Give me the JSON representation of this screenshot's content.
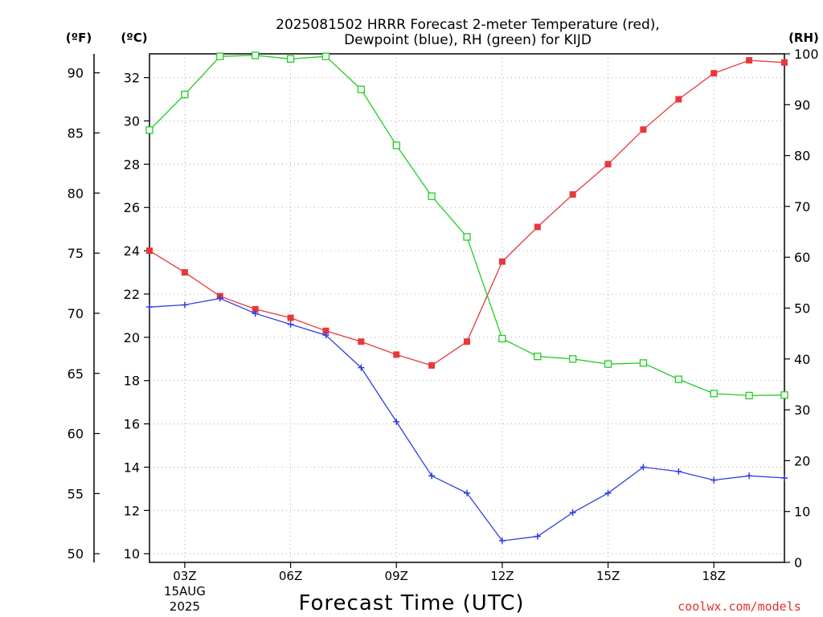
{
  "chart_data": {
    "type": "line",
    "title_line1": "2025081502 HRRR Forecast 2-meter Temperature (red),",
    "title_line2": "Dewpoint (blue), RH (green) for KIJD",
    "xlabel": "Forecast Time (UTC)",
    "credit": "coolwx.com/models",
    "left_outer_unit": "(ºF)",
    "left_inner_unit": "(ºC)",
    "right_unit": "(RH)",
    "x_hours": [
      2,
      3,
      4,
      5,
      6,
      7,
      8,
      9,
      10,
      11,
      12,
      13,
      14,
      15,
      16,
      17,
      18,
      19,
      20
    ],
    "xlim": [
      2,
      20
    ],
    "x_ticks": [
      {
        "hour": 3,
        "label": "03Z",
        "sub1": "15AUG",
        "sub2": "2025"
      },
      {
        "hour": 6,
        "label": "06Z"
      },
      {
        "hour": 9,
        "label": "09Z"
      },
      {
        "hour": 12,
        "label": "12Z"
      },
      {
        "hour": 15,
        "label": "15Z"
      },
      {
        "hour": 18,
        "label": "18Z"
      }
    ],
    "ylim_c": [
      9.6,
      33.1
    ],
    "ylim_rh": [
      0,
      100
    ],
    "c_ticks": [
      10,
      12,
      14,
      16,
      18,
      20,
      22,
      24,
      26,
      28,
      30,
      32
    ],
    "f_ticks": [
      50,
      55,
      60,
      65,
      70,
      75,
      80,
      85,
      90
    ],
    "rh_ticks": [
      0,
      10,
      20,
      30,
      40,
      50,
      60,
      70,
      80,
      90,
      100
    ],
    "grid": true,
    "series": [
      {
        "name": "Temperature",
        "unit": "C",
        "color": "#e8383c",
        "marker": "filled-square",
        "values": [
          24.0,
          23.0,
          21.9,
          21.3,
          20.9,
          20.3,
          19.8,
          19.2,
          18.7,
          19.8,
          23.5,
          25.1,
          26.6,
          28.0,
          29.6,
          31.0,
          32.2,
          32.8,
          32.7
        ]
      },
      {
        "name": "Dewpoint",
        "unit": "C",
        "color": "#2e3fe0",
        "marker": "plus",
        "values": [
          21.4,
          21.5,
          21.8,
          21.1,
          20.6,
          20.1,
          18.6,
          16.1,
          13.6,
          12.8,
          10.6,
          10.8,
          11.9,
          12.8,
          14.0,
          13.8,
          13.4,
          13.6,
          13.5
        ]
      },
      {
        "name": "RH",
        "unit": "%",
        "color": "#22cc22",
        "marker": "open-square",
        "values": [
          85.0,
          92.0,
          99.5,
          99.7,
          99.0,
          99.5,
          93.0,
          82.0,
          72.0,
          64.0,
          44.0,
          40.5,
          40.0,
          39.0,
          39.2,
          36.0,
          33.2,
          32.8,
          32.9
        ]
      }
    ]
  }
}
